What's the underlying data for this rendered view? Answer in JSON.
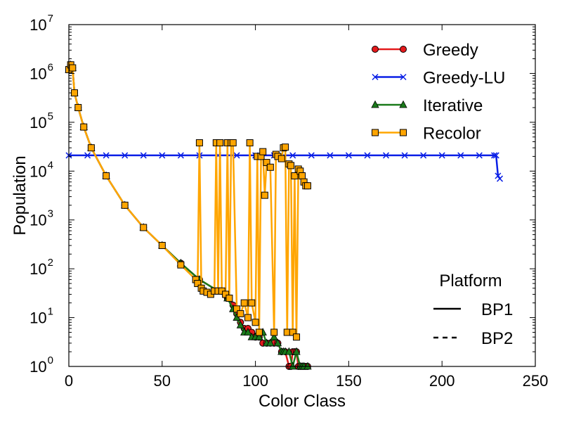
{
  "chart_data": {
    "type": "line",
    "xlabel": "Color Class",
    "ylabel": "Population",
    "xlim": [
      0,
      250
    ],
    "ylim": [
      1,
      10000000
    ],
    "yscale": "log",
    "xticks": [
      "0",
      "50",
      "100",
      "150",
      "200",
      "250"
    ],
    "yticks": [
      {
        "base": "10",
        "exp": "0"
      },
      {
        "base": "10",
        "exp": "1"
      },
      {
        "base": "10",
        "exp": "2"
      },
      {
        "base": "10",
        "exp": "3"
      },
      {
        "base": "10",
        "exp": "4"
      },
      {
        "base": "10",
        "exp": "5"
      },
      {
        "base": "10",
        "exp": "6"
      },
      {
        "base": "10",
        "exp": "7"
      }
    ],
    "grid": false,
    "legend_position": "top-right",
    "series": [
      {
        "name": "Greedy",
        "color": "#e41a1c",
        "marker": "circle",
        "x": [
          0,
          1,
          2,
          3,
          5,
          8,
          12,
          20,
          30,
          40,
          50,
          60,
          70,
          80,
          85,
          88,
          90,
          92,
          94,
          96,
          98,
          100,
          102,
          104,
          106,
          108,
          110,
          112,
          114,
          116,
          118,
          119,
          120,
          121,
          122,
          123,
          124,
          125,
          126,
          127,
          128
        ],
        "y": [
          1200000,
          1500000,
          1300000,
          400000,
          200000,
          80000,
          30000,
          8000,
          2000,
          700,
          300,
          130,
          60,
          35,
          25,
          18,
          12,
          8,
          6,
          6,
          5,
          4,
          4,
          3,
          3,
          3,
          3,
          3,
          2,
          2,
          1,
          1,
          2,
          2,
          2,
          1,
          1,
          1,
          1,
          1,
          1
        ]
      },
      {
        "name": "Greedy-LU",
        "color": "#0a1fe6",
        "marker": "x",
        "x": [
          0,
          10,
          20,
          30,
          40,
          50,
          60,
          70,
          80,
          90,
          100,
          110,
          120,
          130,
          140,
          150,
          160,
          170,
          180,
          190,
          200,
          210,
          220,
          228,
          229,
          230,
          231
        ],
        "y": [
          21000,
          21000,
          21000,
          21000,
          21000,
          21000,
          21000,
          21000,
          21000,
          21000,
          21000,
          21000,
          21000,
          21000,
          21000,
          21000,
          21000,
          21000,
          21000,
          21000,
          21000,
          21000,
          21000,
          21000,
          21000,
          8000,
          7000
        ]
      },
      {
        "name": "Iterative",
        "color": "#1a7a1a",
        "marker": "triangle",
        "x": [
          0,
          1,
          2,
          3,
          5,
          8,
          12,
          20,
          30,
          40,
          50,
          60,
          70,
          80,
          85,
          88,
          90,
          92,
          94,
          96,
          98,
          100,
          102,
          104,
          106,
          108,
          110,
          112,
          114,
          115,
          116,
          118,
          120,
          122,
          124,
          125,
          126,
          128
        ],
        "y": [
          1200000,
          1500000,
          1300000,
          400000,
          200000,
          80000,
          30000,
          8000,
          2000,
          700,
          300,
          130,
          60,
          35,
          25,
          15,
          10,
          7,
          5,
          5,
          4,
          4,
          4,
          5,
          3,
          3,
          4,
          3,
          2,
          2,
          2,
          2,
          1,
          2,
          1,
          1,
          1,
          1
        ]
      },
      {
        "name": "Recolor",
        "color": "#ffa500",
        "marker": "square",
        "x": [
          0,
          1,
          2,
          3,
          5,
          8,
          12,
          20,
          30,
          40,
          50,
          60,
          68,
          69,
          70,
          71,
          72,
          74,
          76,
          78,
          79,
          80,
          81,
          82,
          84,
          85,
          86,
          87,
          88,
          90,
          92,
          94,
          96,
          97,
          98,
          100,
          101,
          102,
          103,
          104,
          105,
          106,
          108,
          110,
          111,
          112,
          114,
          115,
          116,
          117,
          118,
          119,
          120,
          121,
          122,
          123,
          124,
          125,
          126,
          127,
          128
        ],
        "y": [
          1200000,
          1500000,
          1300000,
          400000,
          200000,
          80000,
          30000,
          8000,
          2000,
          700,
          300,
          120,
          60,
          50,
          38000,
          40,
          35,
          33,
          30,
          35,
          38000,
          35,
          38000,
          35,
          30,
          38000,
          25,
          38000,
          38000,
          15,
          12,
          20,
          10,
          38000,
          20,
          8,
          20000,
          5,
          20000,
          25000,
          3200,
          15000,
          12000,
          5,
          22000,
          20000,
          18000,
          30000,
          31000,
          5,
          14000,
          13000,
          5,
          8000,
          4,
          11000,
          10000,
          8000,
          6000,
          5000,
          5000
        ]
      }
    ],
    "legend": {
      "series_labels": [
        "Greedy",
        "Greedy-LU",
        "Iterative",
        "Recolor"
      ],
      "platform_title": "Platform",
      "platforms": [
        {
          "label": "BP1",
          "style": "solid"
        },
        {
          "label": "BP2",
          "style": "dashed"
        }
      ]
    }
  }
}
